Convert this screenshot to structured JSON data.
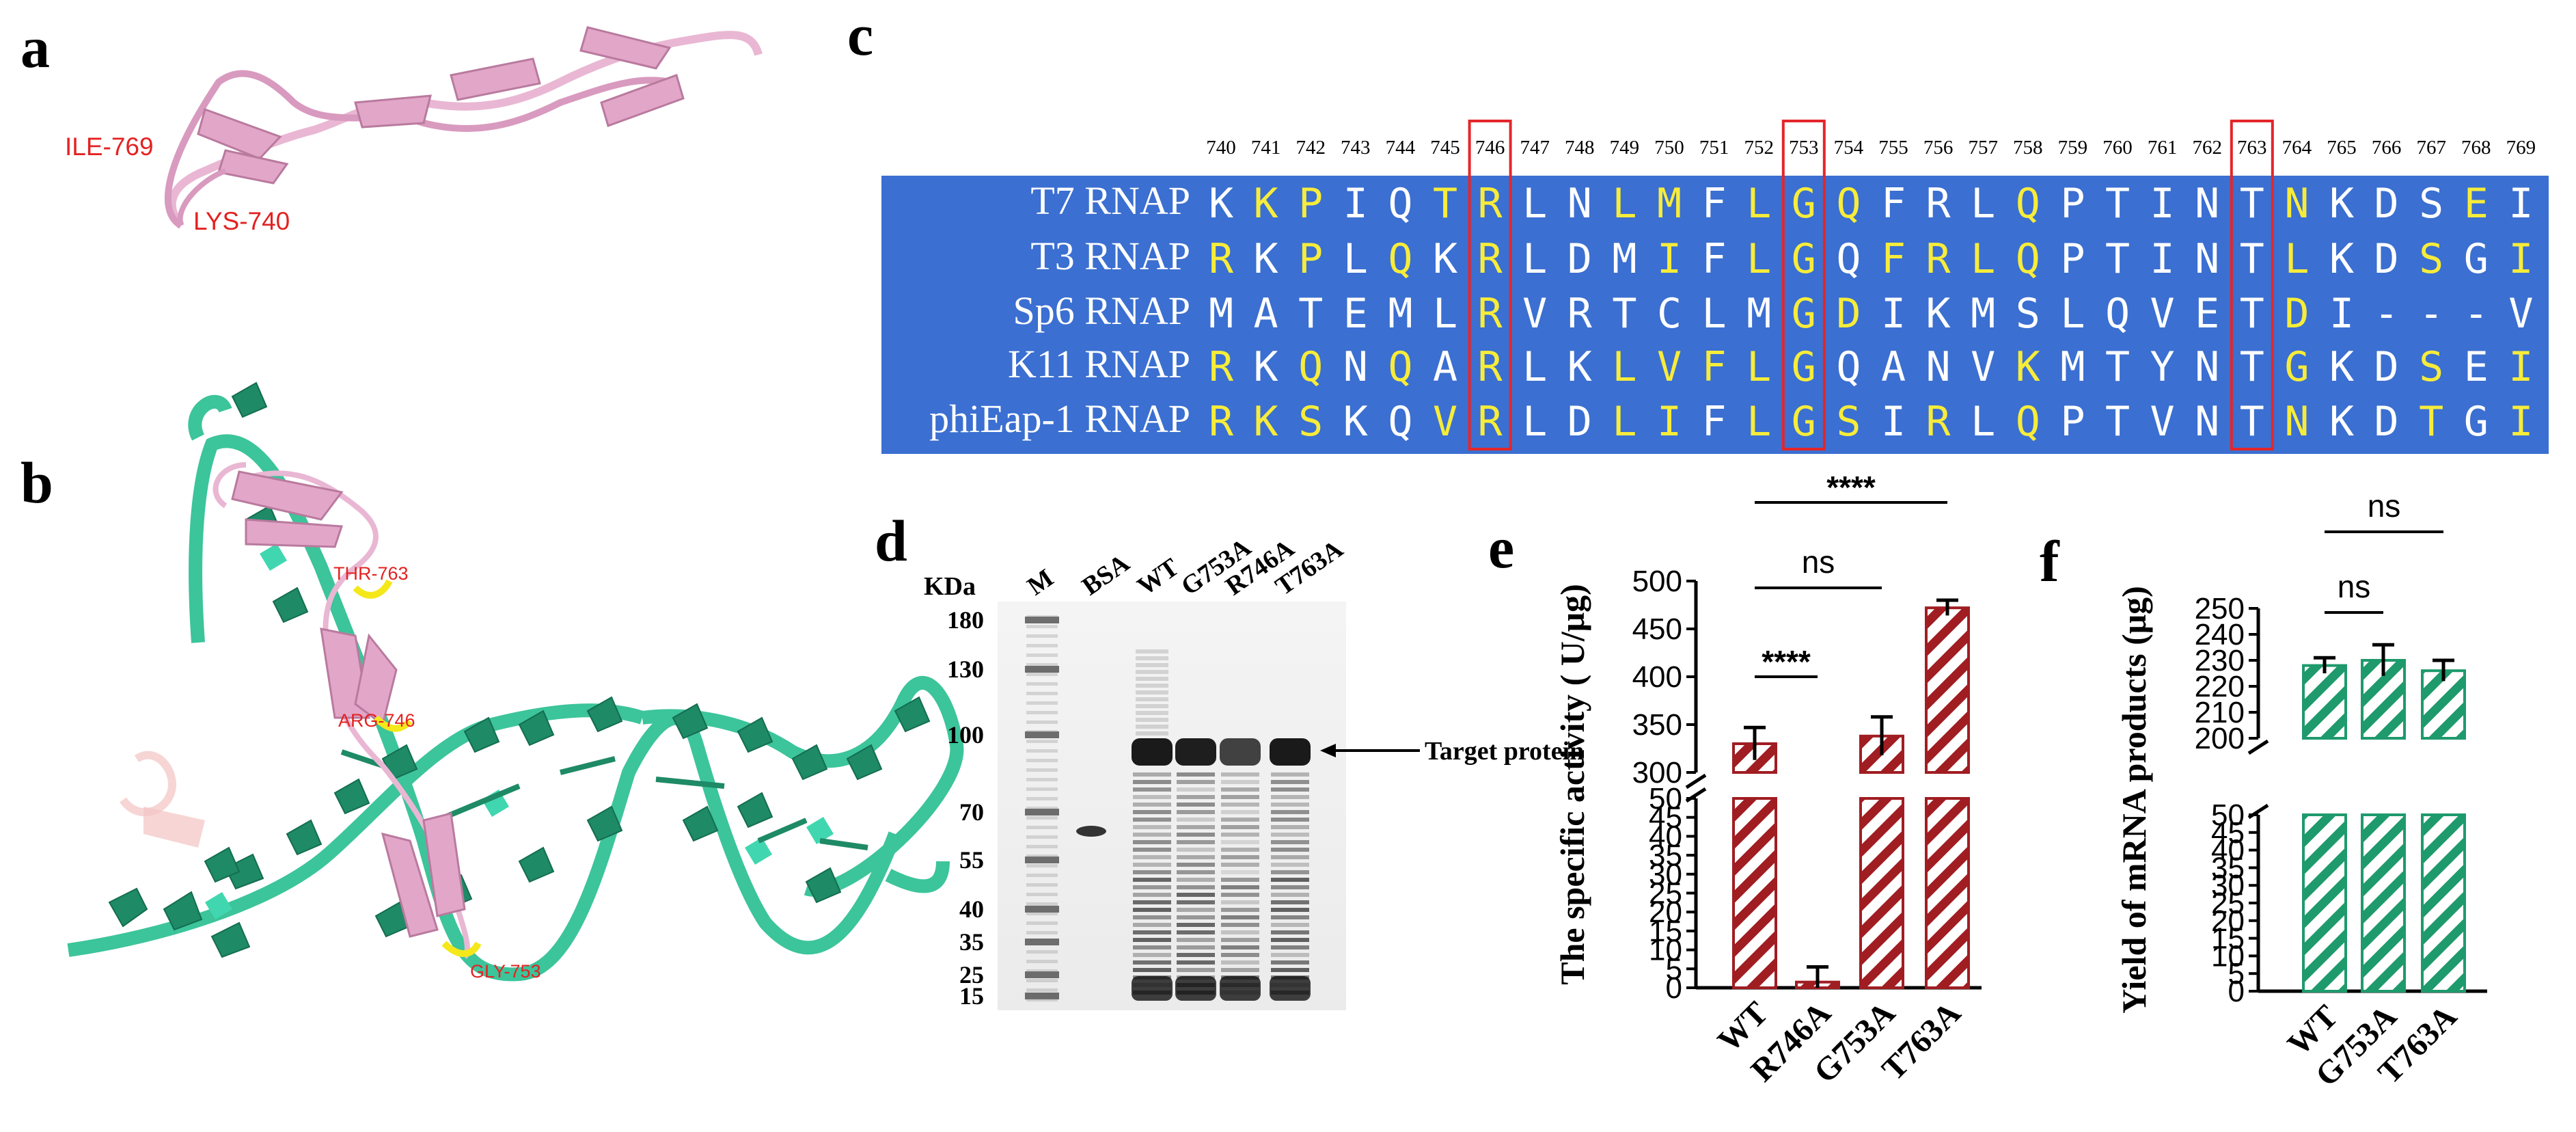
{
  "panels": {
    "a": "a",
    "b": "b",
    "c": "c",
    "d": "d",
    "e": "e",
    "f": "f"
  },
  "structure_labels": {
    "a": [
      "ILE-769",
      "LYS-740"
    ],
    "b": [
      "THR-763",
      "ARG-746",
      "GLY-753"
    ]
  },
  "alignment": {
    "positions": [
      "740",
      "741",
      "742",
      "743",
      "744",
      "745",
      "746",
      "747",
      "748",
      "749",
      "750",
      "751",
      "752",
      "753",
      "754",
      "755",
      "756",
      "757",
      "758",
      "759",
      "760",
      "761",
      "762",
      "763",
      "764",
      "765",
      "766",
      "767",
      "768",
      "769"
    ],
    "highlighted_positions": [
      "746",
      "753",
      "763"
    ],
    "rows": [
      {
        "name": "T7 RNAP",
        "seq": "KKPIQTRLNLMFLGQFRLQPTINTNKDSEI"
      },
      {
        "name": "T3 RNAP",
        "seq": "RKPLQKRLDMIFLGQFRLQPTINTLKDSGI"
      },
      {
        "name": "Sp6 RNAP",
        "seq": "MATEMLRVRTCLMGDIKMSLQVETDI---V"
      },
      {
        "name": "K11 RNAP",
        "seq": "RKQNQARLKLVFLGQANVKMTYNTGKDSEI"
      },
      {
        "name": "phiEap-1 RNAP",
        "seq": "RKSKQVRLDLIFLGSIRLQPTVNTNKDTGI"
      }
    ],
    "yellow_mask": [
      "011001100110111000100000100010",
      "101010100010110111100000100101",
      "000000100000011000000000100000",
      "101010100111110000100000100101",
      "111001100110111010100000100101"
    ],
    "colors": {
      "background": "#3b6fd1",
      "conserved": "#f7ec3a",
      "other": "#ffffff",
      "box": "#e3262a"
    }
  },
  "gel": {
    "kda_label": "KDa",
    "markers": [
      "180",
      "130",
      "100",
      "70",
      "55",
      "40",
      "35",
      "25",
      "15"
    ],
    "lanes": [
      "M",
      "BSA",
      "WT",
      "G753A",
      "R746A",
      "T763A"
    ],
    "target_label": "Target protein"
  },
  "chart_data": [
    {
      "type": "bar",
      "panel": "e",
      "categories": [
        "WT",
        "R746A",
        "G753A",
        "T763A"
      ],
      "values": [
        330,
        1.5,
        338,
        472
      ],
      "errors": [
        17,
        4,
        20,
        8
      ],
      "ylabel": "The specific activity ( U/μg)",
      "broken_axis": {
        "lower": [
          0,
          50
        ],
        "upper": [
          300,
          500
        ]
      },
      "yticks_lower": [
        "0",
        "5",
        "10",
        "15",
        "20",
        "25",
        "30",
        "35",
        "40",
        "45",
        "50"
      ],
      "yticks_upper": [
        "300",
        "350",
        "400",
        "450",
        "500"
      ],
      "significance": [
        {
          "pair": [
            "WT",
            "R746A"
          ],
          "label": "****"
        },
        {
          "pair": [
            "WT",
            "G753A"
          ],
          "label": "ns"
        },
        {
          "pair": [
            "WT",
            "T763A"
          ],
          "label": "****"
        }
      ],
      "bar_color": "#a01d22"
    },
    {
      "type": "bar",
      "panel": "f",
      "categories": [
        "WT",
        "G753A",
        "T763A"
      ],
      "values": [
        228,
        230,
        226
      ],
      "errors": [
        3,
        6,
        4
      ],
      "ylabel": "Yield of mRNA products (μg)",
      "broken_axis": {
        "lower": [
          0,
          50
        ],
        "upper": [
          200,
          250
        ]
      },
      "yticks_lower": [
        "0",
        "5",
        "10",
        "15",
        "20",
        "25",
        "30",
        "35",
        "40",
        "45",
        "50"
      ],
      "yticks_upper": [
        "200",
        "210",
        "220",
        "230",
        "240",
        "250"
      ],
      "significance": [
        {
          "pair": [
            "WT",
            "G753A"
          ],
          "label": "ns"
        },
        {
          "pair": [
            "WT",
            "T763A"
          ],
          "label": "ns"
        }
      ],
      "bar_color": "#1e9a6c"
    }
  ]
}
